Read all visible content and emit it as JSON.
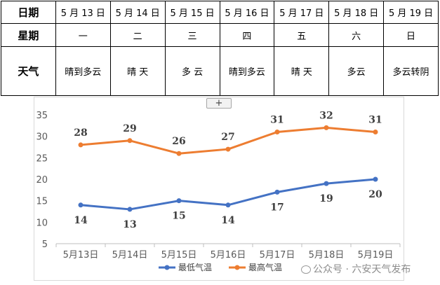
{
  "table": {
    "row_labels": [
      "日期",
      "星期",
      "天气"
    ],
    "dates": [
      "5 月 13 日",
      "5 月 14 日",
      "5 月 15 日",
      "5 月 16 日",
      "5 月 17 日",
      "5 月 18 日",
      "5 月 19 日"
    ],
    "weekdays": [
      "一",
      "二",
      "三",
      "四",
      "五",
      "六",
      "日"
    ],
    "weather": [
      "晴到多云",
      "晴 天",
      "多 云",
      "晴到多云",
      "晴 天",
      "多云",
      "多云转阴"
    ]
  },
  "expand_button": "+",
  "watermark": "公众号 · 六安天气发布",
  "chart_data": {
    "type": "line",
    "categories": [
      "5月13日",
      "5月14日",
      "5月15日",
      "5月16日",
      "5月17日",
      "5月18日",
      "5月19日"
    ],
    "series": [
      {
        "name": "最低气温",
        "values": [
          14,
          13,
          15,
          14,
          17,
          19,
          20
        ],
        "color": "#4472c4"
      },
      {
        "name": "最高气温",
        "values": [
          28,
          29,
          26,
          27,
          31,
          32,
          31
        ],
        "color": "#ed7d31"
      }
    ],
    "yticks": [
      5,
      10,
      15,
      20,
      25,
      30,
      35
    ],
    "ylim": [
      5,
      35
    ],
    "grid": false,
    "legend": "bottom",
    "data_labels": true
  }
}
